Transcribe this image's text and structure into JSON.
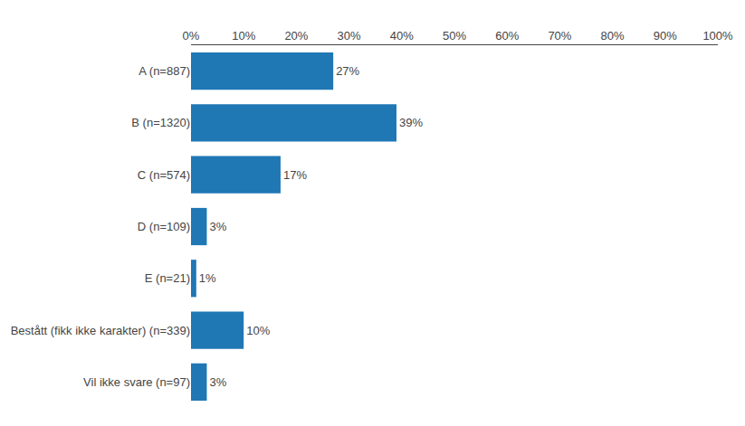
{
  "chart_data": {
    "type": "bar",
    "orientation": "horizontal",
    "categories": [
      "A (n=887)",
      "B (n=1320)",
      "C (n=574)",
      "D (n=109)",
      "E (n=21)",
      "Bestått (fikk ikke karakter) (n=339)",
      "Vil ikke svare (n=97)"
    ],
    "values": [
      27,
      39,
      17,
      3,
      1,
      10,
      3
    ],
    "data_labels": true,
    "value_labels": [
      "27%",
      "39%",
      "17%",
      "3%",
      "1%",
      "10%",
      "3%"
    ],
    "xlim": [
      0,
      100
    ],
    "xticks": [
      {
        "value": 0,
        "label": "0%"
      },
      {
        "value": 10,
        "label": "10%"
      },
      {
        "value": 20,
        "label": "20%"
      },
      {
        "value": 30,
        "label": "30%"
      },
      {
        "value": 40,
        "label": "40%"
      },
      {
        "value": 50,
        "label": "50%"
      },
      {
        "value": 60,
        "label": "60%"
      },
      {
        "value": 70,
        "label": "70%"
      },
      {
        "value": 80,
        "label": "80%"
      },
      {
        "value": 90,
        "label": "90%"
      },
      {
        "value": 100,
        "label": "100%"
      }
    ],
    "grid": false
  }
}
